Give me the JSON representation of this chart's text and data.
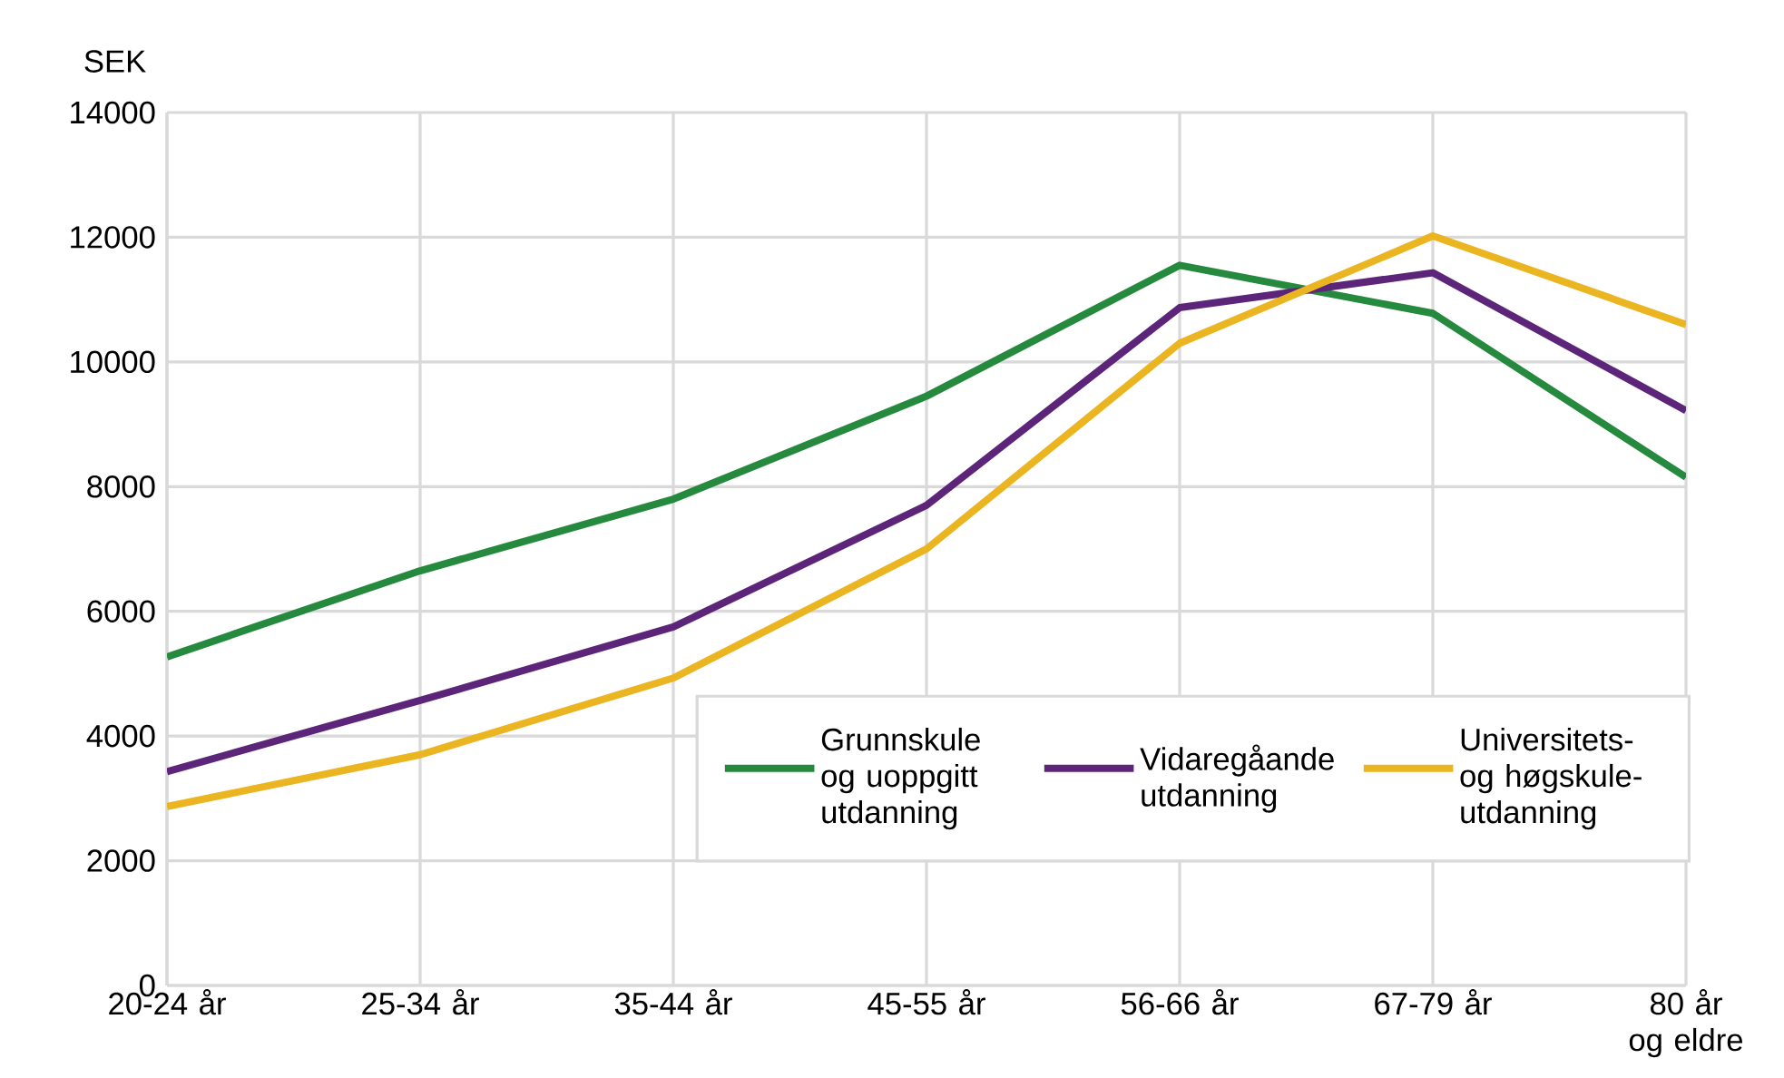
{
  "chart_data": {
    "type": "line",
    "ylabel": "SEK",
    "categories": [
      "20-24 år",
      "25-34 år",
      "35-44 år",
      "45-55 år",
      "56-66 år",
      "67-79 år",
      "80 år og eldre"
    ],
    "series": [
      {
        "name": "Grunnskule og uoppgitt utdanning",
        "color": "#268a3e",
        "values": [
          5270,
          6650,
          7800,
          9450,
          11550,
          10780,
          8150
        ]
      },
      {
        "name": "Vidaregåande utdanning",
        "color": "#5c2579",
        "values": [
          3430,
          4570,
          5750,
          7700,
          10870,
          11430,
          9220
        ]
      },
      {
        "name": "Universitets- og høgskule-utdanning",
        "color": "#eab520",
        "values": [
          2870,
          3700,
          4930,
          7000,
          10300,
          12020,
          10600
        ]
      }
    ],
    "ylim": [
      0,
      14000
    ],
    "yticks": [
      0,
      2000,
      4000,
      6000,
      8000,
      10000,
      12000,
      14000
    ],
    "grid": true,
    "legend": "bottom right",
    "marker": "none",
    "line_style": "solid"
  }
}
